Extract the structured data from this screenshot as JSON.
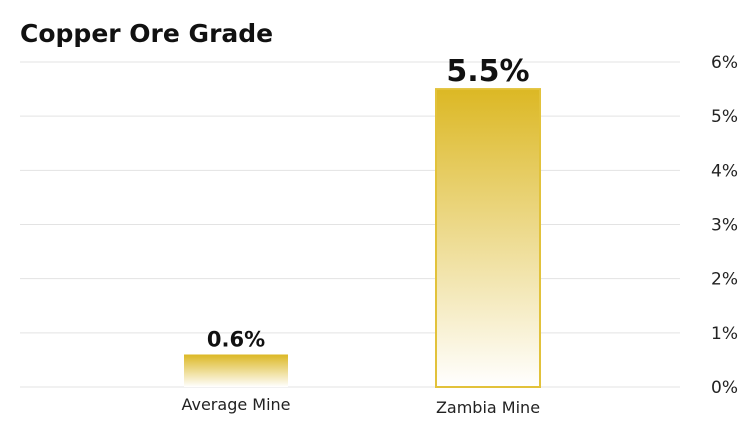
{
  "chart_data": {
    "type": "bar",
    "title": "Copper Ore Grade",
    "categories": [
      "Average Mine",
      "Zambia Mine"
    ],
    "values": [
      0.6,
      5.5
    ],
    "data_labels": [
      "0.6%",
      "5.5%"
    ],
    "ylim": [
      0,
      6
    ],
    "yticks": [
      0,
      1,
      2,
      3,
      4,
      5,
      6
    ],
    "ytick_labels": [
      "0%",
      "1%",
      "2%",
      "3%",
      "4%",
      "5%",
      "6%"
    ],
    "y_axis_side": "right",
    "grid": true,
    "colors": {
      "bar_top": "#dcb824",
      "bar_bottom": "#ffffff",
      "border": "#e2c23a",
      "grid": "#e3e3e3"
    }
  }
}
